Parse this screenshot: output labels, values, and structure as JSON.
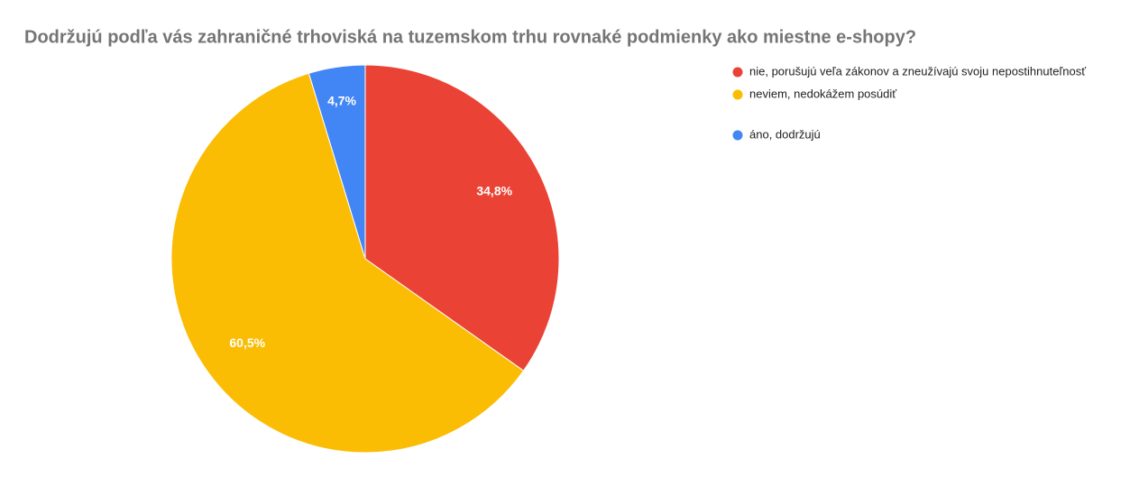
{
  "chart_data": {
    "type": "pie",
    "title": "Dodržujú podľa vás zahraničné trhoviská na tuzemskom trhu rovnaké podmienky ako miestne e-shopy?",
    "categories": [
      "nie, porušujú veľa zákonov a zneužívajú svoju nepostihnuteľnosť",
      "neviem, nedokážem posúdiť",
      "áno, dodržujú"
    ],
    "values": [
      34.8,
      60.5,
      4.7
    ],
    "value_labels": [
      "34,8%",
      "60,5%",
      "4,7%"
    ],
    "colors": [
      "#ea4335",
      "#fbbc04",
      "#4285f4"
    ],
    "legend": "right"
  }
}
